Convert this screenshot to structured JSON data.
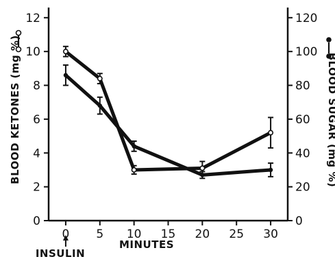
{
  "chart_data": {
    "type": "line",
    "title": "",
    "xlabel": "MINUTES",
    "ylabel_left": "BLOOD KETONES (mg %)",
    "ylabel_right": "BLOOD SUGAR (mg %)",
    "x_ticks": [
      0,
      5,
      10,
      15,
      20,
      25,
      30
    ],
    "xlim": [
      -2.5,
      32.5
    ],
    "y_left_ticks": [
      0,
      2,
      4,
      6,
      8,
      10,
      12
    ],
    "y_left_lim": [
      0,
      12.6
    ],
    "y_right_ticks": [
      0,
      20,
      40,
      60,
      80,
      100,
      120
    ],
    "y_right_lim": [
      0,
      126
    ],
    "grid": false,
    "annotation": {
      "label": "INSULIN",
      "x": 0
    },
    "series": [
      {
        "axis": "left",
        "marker": "open-circle",
        "x": [
          0,
          5,
          10,
          20,
          30
        ],
        "y": [
          10.0,
          8.4,
          3.0,
          3.1,
          5.2
        ],
        "err": [
          0.3,
          0.3,
          0.25,
          0.4,
          0.9
        ]
      },
      {
        "axis": "right",
        "marker": "filled-circle",
        "x": [
          0,
          5,
          10,
          20,
          30
        ],
        "y": [
          86,
          68,
          44,
          27,
          30
        ],
        "err": [
          6,
          5,
          3,
          2,
          4
        ]
      }
    ]
  }
}
